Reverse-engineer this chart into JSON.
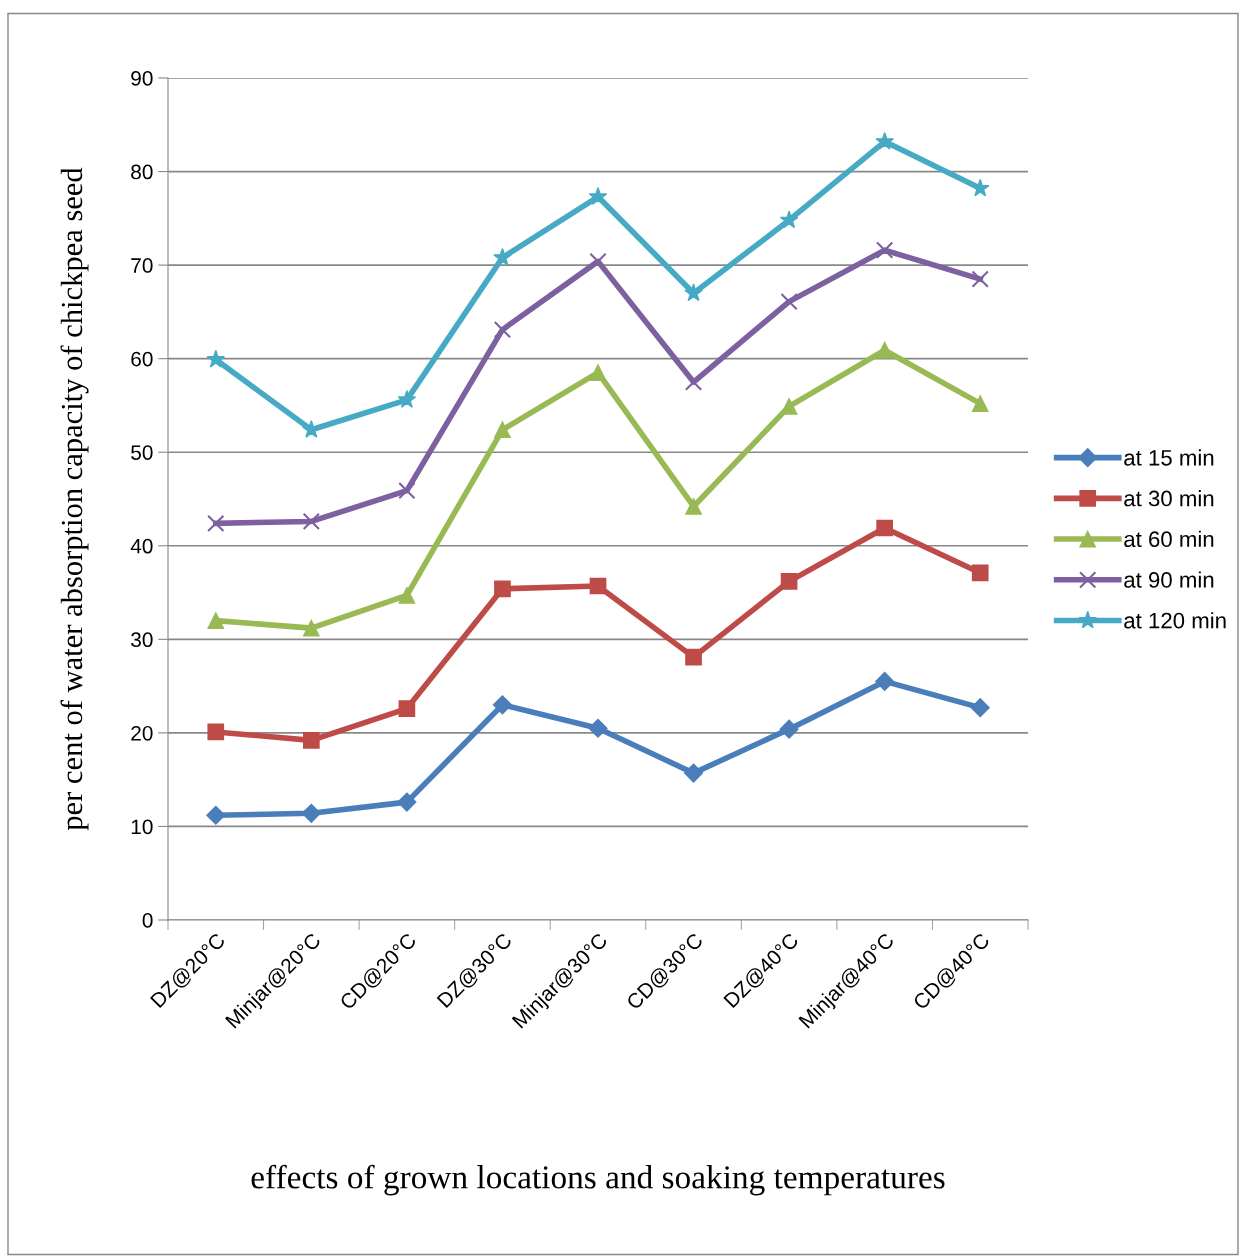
{
  "chart_data": {
    "type": "line",
    "xlabel": "effects of grown locations and soaking temperatures",
    "ylabel": "per cent of water absorption capacity of chickpea seed",
    "categories": [
      "DZ@20°C",
      "Minjar@20°C",
      "CD@20°C",
      "DZ@30°C",
      "Minjar@30°C",
      "CD@30°C",
      "DZ@40°C",
      "Minjar@40°C",
      "CD@40°C"
    ],
    "series": [
      {
        "name": "at 15 min",
        "color": "#4a7ebb",
        "marker": "diamond",
        "values": [
          11.2,
          11.4,
          12.6,
          23.0,
          20.5,
          15.7,
          20.4,
          25.5,
          22.7
        ]
      },
      {
        "name": "at 30 min",
        "color": "#be4b48",
        "marker": "square",
        "values": [
          20.1,
          19.2,
          22.6,
          35.4,
          35.7,
          28.1,
          36.2,
          41.9,
          37.1
        ]
      },
      {
        "name": "at 60 min",
        "color": "#98b954",
        "marker": "triangle",
        "values": [
          32.0,
          31.2,
          34.7,
          52.4,
          58.5,
          44.2,
          54.9,
          60.9,
          55.2
        ]
      },
      {
        "name": "at 90 min",
        "color": "#7d60a0",
        "marker": "cross",
        "values": [
          42.4,
          42.6,
          45.9,
          63.1,
          70.4,
          57.5,
          66.1,
          71.6,
          68.5
        ]
      },
      {
        "name": "at 120 min",
        "color": "#46aac5",
        "marker": "star",
        "values": [
          59.9,
          52.4,
          55.6,
          70.8,
          77.3,
          67.0,
          74.8,
          83.2,
          78.2
        ]
      }
    ],
    "ylim": [
      0,
      90
    ],
    "yticks": [
      0,
      10,
      20,
      30,
      40,
      50,
      60,
      70,
      80,
      90
    ],
    "grid": "y",
    "legend": "right",
    "line_style": "solid"
  }
}
